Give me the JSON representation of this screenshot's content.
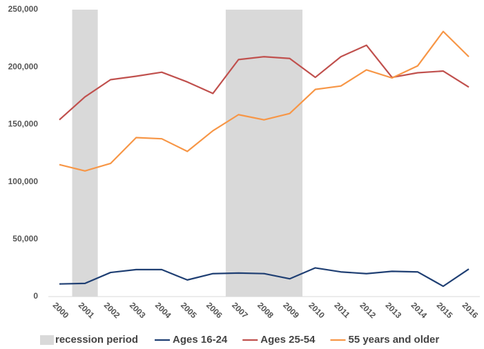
{
  "chart_data": {
    "type": "line",
    "x": [
      2000,
      2001,
      2002,
      2003,
      2004,
      2005,
      2006,
      2007,
      2008,
      2009,
      2010,
      2011,
      2012,
      2013,
      2014,
      2015,
      2016
    ],
    "xlim": [
      2000,
      2016
    ],
    "xticks": [
      2000,
      2001,
      2002,
      2003,
      2004,
      2005,
      2006,
      2007,
      2008,
      2009,
      2010,
      2011,
      2012,
      2013,
      2014,
      2015,
      2016
    ],
    "ylim": [
      0,
      250000
    ],
    "yticks": [
      0,
      {
        "value": 50000,
        "label": "50,000"
      },
      {
        "value": 100000,
        "label": "100,000"
      },
      {
        "value": 150000,
        "label": "150,000"
      },
      {
        "value": 200000,
        "label": "200,000"
      },
      {
        "value": 250000,
        "label": "250,000"
      }
    ],
    "grid": false,
    "legend": "bottom",
    "recession": {
      "name": "recession period",
      "color": "#d9d9d9",
      "ranges": [
        [
          2001,
          2001
        ],
        [
          2007,
          2009
        ]
      ]
    },
    "series": [
      {
        "name": "Ages 16-24",
        "color": "#1f3f73",
        "values": [
          11000,
          11500,
          21000,
          23500,
          23500,
          14500,
          20000,
          20500,
          20000,
          15500,
          25000,
          21500,
          20000,
          22000,
          21500,
          9000,
          24000
        ]
      },
      {
        "name": "Ages 25-54",
        "color": "#c0504d",
        "values": [
          154000,
          174000,
          189000,
          192000,
          195500,
          187000,
          177000,
          206500,
          209000,
          207500,
          191000,
          209000,
          219000,
          191000,
          195000,
          196500,
          182500
        ]
      },
      {
        "name": "55 years and older",
        "color": "#f79646",
        "values": [
          115000,
          109500,
          116000,
          138500,
          137500,
          126500,
          144500,
          158500,
          154000,
          159500,
          180500,
          183500,
          197500,
          190500,
          201000,
          231000,
          209000
        ]
      }
    ]
  }
}
